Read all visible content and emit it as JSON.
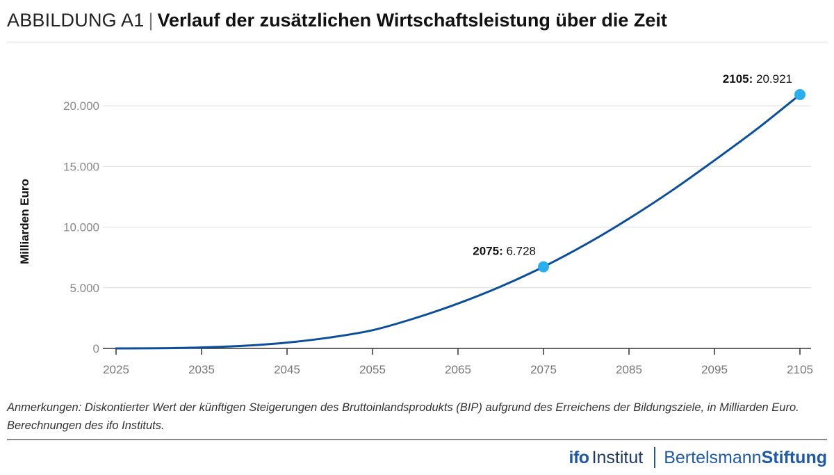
{
  "header": {
    "prefix": "ABBILDUNG A1",
    "separator": "|",
    "title": "Verlauf der zusätzlichen Wirtschaftsleistung über die Zeit"
  },
  "chart_data": {
    "type": "line",
    "ylabel": "Milliarden Euro",
    "xlim": [
      2025,
      2105
    ],
    "ylim": [
      0,
      20921
    ],
    "xticks": [
      2025,
      2035,
      2045,
      2055,
      2065,
      2075,
      2085,
      2095,
      2105
    ],
    "xtick_labels": [
      "2025",
      "2035",
      "2045",
      "2055",
      "2065",
      "2075",
      "2085",
      "2095",
      "2105"
    ],
    "yticks": [
      0,
      5000,
      10000,
      15000,
      20000
    ],
    "ytick_labels": [
      "0",
      "5.000",
      "10.000",
      "15.000",
      "20.000"
    ],
    "grid": true,
    "series": [
      {
        "color": "#0b4f9c",
        "x": [
          2025,
          2030,
          2035,
          2040,
          2045,
          2050,
          2055,
          2060,
          2065,
          2070,
          2075,
          2080,
          2085,
          2090,
          2095,
          2100,
          2105
        ],
        "y": [
          0,
          15,
          80,
          220,
          480,
          900,
          1500,
          2500,
          3700,
          5100,
          6728,
          8600,
          10700,
          13000,
          15500,
          18100,
          20921
        ]
      }
    ],
    "annotations": [
      {
        "x": 2075,
        "y": 6728,
        "label_bold": "2075:",
        "label_value": "6.728",
        "marker_color": "#29aff0"
      },
      {
        "x": 2105,
        "y": 20921,
        "label_bold": "2105:",
        "label_value": "20.921",
        "marker_color": "#29aff0"
      }
    ]
  },
  "notes": "Anmerkungen: Diskontierter Wert der künftigen Steigerungen des Bruttoinlandsprodukts (BIP) aufgrund des Erreichens der Bildungsziele, in Milliarden Euro. Berechnungen des ifo Instituts.",
  "footer": {
    "ifo_mark": "ifo",
    "ifo_text": "Institut",
    "bst_regular": "Bertelsmann",
    "bst_bold": "Stiftung"
  }
}
